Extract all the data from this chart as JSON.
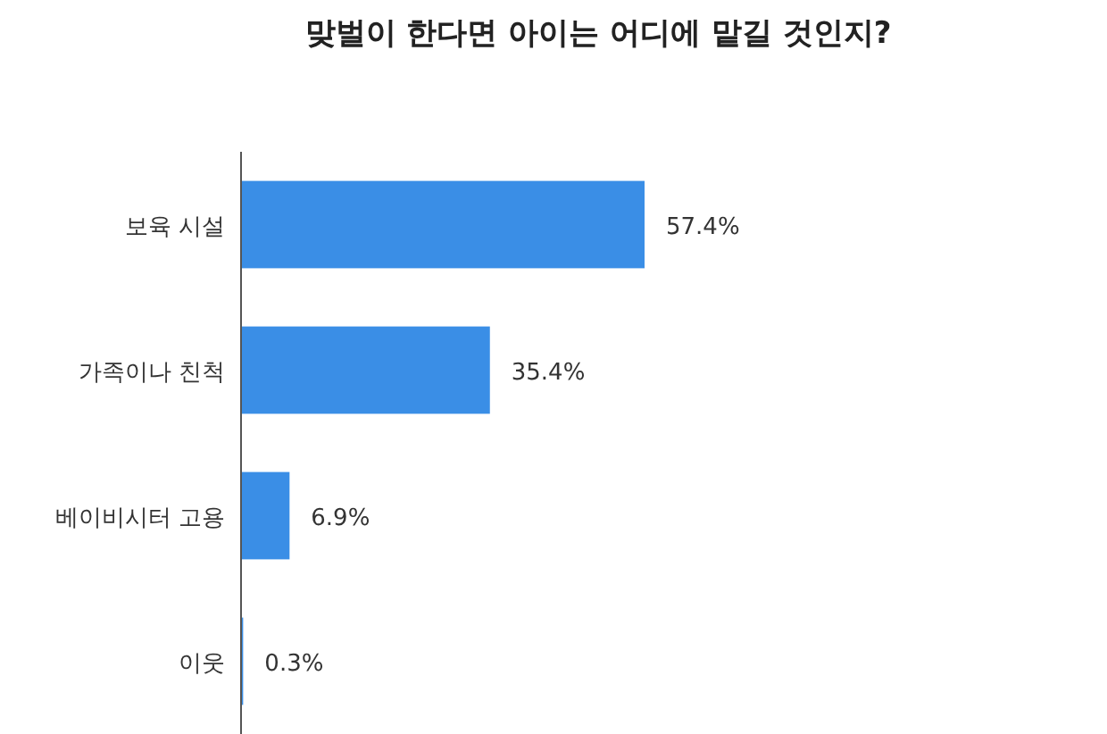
{
  "chart_data": {
    "type": "bar",
    "orientation": "horizontal",
    "title": "맞벌이 한다면 아이는 어디에 맡길 것인지?",
    "categories": [
      "보육 시설",
      "가족이나 친척",
      "베이비시터 고용",
      "이웃"
    ],
    "values": [
      57.4,
      35.4,
      6.9,
      0.3
    ],
    "value_labels": [
      "57.4%",
      "35.4%",
      "6.9%",
      "0.3%"
    ],
    "color": "#3a8ee6"
  }
}
